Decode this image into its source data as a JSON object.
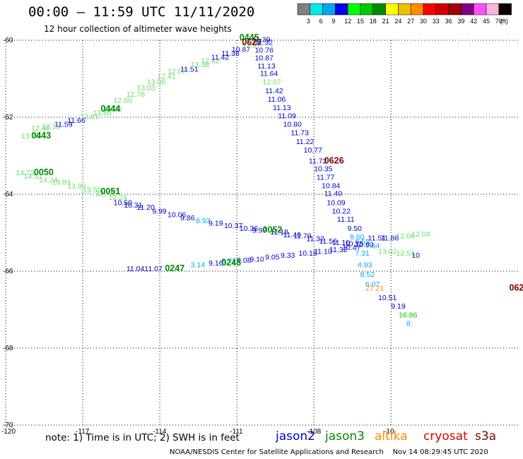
{
  "header": {
    "title": "00:00 – 11:59 UTC 11/11/2020",
    "subtitle": "12 hour collection of altimeter wave heights"
  },
  "scale": {
    "labels": [
      "3",
      "6",
      "9",
      "12",
      "15",
      "18",
      "21",
      "24",
      "27",
      "30",
      "33",
      "36",
      "39",
      "42",
      "45",
      "70"
    ],
    "unit": "(ft)",
    "colors": [
      "#808080",
      "#00e8e8",
      "#00a8f0",
      "#0000f0",
      "#00ff00",
      "#00c800",
      "#008a00",
      "#ffff00",
      "#e8c000",
      "#ff8c00",
      "#ff0000",
      "#d00000",
      "#a00000",
      "#800080",
      "#ff50ff",
      "#ffb4e0",
      "#000000"
    ]
  },
  "footer": {
    "note": "note: 1) Time is in UTC; 2) SWH is in feet",
    "missions": [
      {
        "name": "jason2",
        "color": "#0000cc"
      },
      {
        "name": "jason3",
        "color": "#008a00"
      },
      {
        "name": "altika",
        "color": "#ff8c00"
      },
      {
        "name": "cryosat",
        "color": "#e00000"
      },
      {
        "name": "s3a",
        "color": "#800000"
      }
    ],
    "credit": "NOAA/NESDIS Center for Satellite Applications and Research    Nov 14 08:29:45 UTC 2020"
  },
  "chart_data": {
    "type": "scatter",
    "title": "00:00 – 11:59 UTC 11/11/2020",
    "xlim": [
      -120,
      -100
    ],
    "ylim": [
      -70,
      -60
    ],
    "x_ticks": [
      "-120",
      "-117",
      "-114",
      "-111",
      "-108",
      "-10"
    ],
    "y_ticks": [
      "-60",
      "-62",
      "-64",
      "-66",
      "-68",
      "-70"
    ],
    "grid": true,
    "pass_labels": [
      {
        "text": "0445",
        "lon": -110.9,
        "lat": -60.0,
        "color": "#008a00"
      },
      {
        "text": "0627",
        "lon": -110.8,
        "lat": -60.13,
        "color": "#800000"
      },
      {
        "text": "0444",
        "lon": -116.3,
        "lat": -61.85,
        "color": "#008a00"
      },
      {
        "text": "0443",
        "lon": -119.0,
        "lat": -62.55,
        "color": "#008a00"
      },
      {
        "text": "0626",
        "lon": -107.6,
        "lat": -63.2,
        "color": "#800000"
      },
      {
        "text": "0050",
        "lon": -118.9,
        "lat": -63.5,
        "color": "#008a00"
      },
      {
        "text": "0051",
        "lon": -116.3,
        "lat": -64.0,
        "color": "#008a00"
      },
      {
        "text": "0052",
        "lon": -110.0,
        "lat": -65.0,
        "color": "#008a00"
      },
      {
        "text": "0248",
        "lon": -111.6,
        "lat": -65.85,
        "color": "#008a00"
      },
      {
        "text": "0247",
        "lon": -113.8,
        "lat": -66.0,
        "color": "#008a00"
      },
      {
        "text": "062",
        "lon": -100.4,
        "lat": -66.5,
        "color": "#800000"
      }
    ],
    "points": [
      {
        "lon": -119.4,
        "lat": -62.55,
        "value": "13.05",
        "color": "#66dd66"
      },
      {
        "lon": -119.0,
        "lat": -62.35,
        "value": "12.40",
        "color": "#66dd66"
      },
      {
        "lon": -118.6,
        "lat": -62.3,
        "value": "12.13",
        "color": "#66dd66"
      },
      {
        "lon": -118.1,
        "lat": -62.25,
        "value": "11.59",
        "color": "#0000cc"
      },
      {
        "lon": -117.6,
        "lat": -62.15,
        "value": "11.66",
        "color": "#0000cc"
      },
      {
        "lon": -117.1,
        "lat": -62.05,
        "value": "12.81",
        "color": "#66dd66"
      },
      {
        "lon": -116.6,
        "lat": -61.95,
        "value": "13.66",
        "color": "#66dd66"
      },
      {
        "lon": -116.2,
        "lat": -61.85,
        "value": "13.02",
        "color": "#66dd66"
      },
      {
        "lon": -115.8,
        "lat": -61.62,
        "value": "12.60",
        "color": "#66dd66"
      },
      {
        "lon": -115.3,
        "lat": -61.47,
        "value": "12.78",
        "color": "#66dd66"
      },
      {
        "lon": -114.9,
        "lat": -61.3,
        "value": "13.03",
        "color": "#66dd66"
      },
      {
        "lon": -114.5,
        "lat": -61.15,
        "value": "13.06",
        "color": "#66dd66"
      },
      {
        "lon": -114.1,
        "lat": -61.0,
        "value": "12.41",
        "color": "#66dd66"
      },
      {
        "lon": -113.7,
        "lat": -60.87,
        "value": "12.07",
        "color": "#66dd66"
      },
      {
        "lon": -113.2,
        "lat": -60.82,
        "value": "11.51",
        "color": "#0000cc"
      },
      {
        "lon": -112.8,
        "lat": -60.7,
        "value": "13.38",
        "color": "#66dd66"
      },
      {
        "lon": -112.4,
        "lat": -60.6,
        "value": "12.42",
        "color": "#66dd66"
      },
      {
        "lon": -112.0,
        "lat": -60.5,
        "value": "11.42",
        "color": "#0000cc"
      },
      {
        "lon": -111.6,
        "lat": -60.4,
        "value": "11.38",
        "color": "#0000cc"
      },
      {
        "lon": -111.2,
        "lat": -60.3,
        "value": "10.87",
        "color": "#0000cc"
      },
      {
        "lon": -110.8,
        "lat": -60.2,
        "value": "12.47",
        "color": "#66dd66"
      },
      {
        "lon": -110.4,
        "lat": -60.05,
        "value": "11.39",
        "color": "#0000cc"
      },
      {
        "lon": -110.3,
        "lat": -60.12,
        "value": "11.32",
        "color": "#0000cc"
      },
      {
        "lon": -110.3,
        "lat": -60.32,
        "value": "10.76",
        "color": "#0000cc"
      },
      {
        "lon": -110.3,
        "lat": -60.52,
        "value": "10.87",
        "color": "#0000cc"
      },
      {
        "lon": -110.2,
        "lat": -60.73,
        "value": "11.13",
        "color": "#0000cc"
      },
      {
        "lon": -110.1,
        "lat": -60.93,
        "value": "11.64",
        "color": "#0000cc"
      },
      {
        "lon": -110.0,
        "lat": -61.15,
        "value": "12.07",
        "color": "#66dd66"
      },
      {
        "lon": -109.9,
        "lat": -61.38,
        "value": "11.42",
        "color": "#0000cc"
      },
      {
        "lon": -109.8,
        "lat": -61.6,
        "value": "11.06",
        "color": "#0000cc"
      },
      {
        "lon": -109.6,
        "lat": -61.82,
        "value": "11.13",
        "color": "#0000cc"
      },
      {
        "lon": -109.4,
        "lat": -62.03,
        "value": "11.09",
        "color": "#0000cc"
      },
      {
        "lon": -109.2,
        "lat": -62.25,
        "value": "10.80",
        "color": "#0000cc"
      },
      {
        "lon": -108.9,
        "lat": -62.47,
        "value": "11.73",
        "color": "#0000cc"
      },
      {
        "lon": -108.7,
        "lat": -62.7,
        "value": "11.22",
        "color": "#0000cc"
      },
      {
        "lon": -108.4,
        "lat": -62.92,
        "value": "10.77",
        "color": "#0000cc"
      },
      {
        "lon": -108.2,
        "lat": -63.2,
        "value": "11.72",
        "color": "#0000cc"
      },
      {
        "lon": -108.0,
        "lat": -63.4,
        "value": "10.35",
        "color": "#0000cc"
      },
      {
        "lon": -107.9,
        "lat": -63.62,
        "value": "11.77",
        "color": "#0000cc"
      },
      {
        "lon": -107.7,
        "lat": -63.84,
        "value": "10.84",
        "color": "#0000cc"
      },
      {
        "lon": -107.6,
        "lat": -64.05,
        "value": "11.40",
        "color": "#0000cc"
      },
      {
        "lon": -107.5,
        "lat": -64.28,
        "value": "10.09",
        "color": "#0000cc"
      },
      {
        "lon": -107.3,
        "lat": -64.5,
        "value": "10.22",
        "color": "#0000cc"
      },
      {
        "lon": -107.1,
        "lat": -64.72,
        "value": "11.11",
        "color": "#0000cc"
      },
      {
        "lon": -106.7,
        "lat": -64.95,
        "value": "9.50",
        "color": "#0000cc"
      },
      {
        "lon": -106.6,
        "lat": -65.17,
        "value": "8.60",
        "color": "#00a8f0"
      },
      {
        "lon": -106.4,
        "lat": -65.3,
        "value": "6.55",
        "color": "#00a8f0"
      },
      {
        "lon": -106.0,
        "lat": -65.4,
        "value": "7.64",
        "color": "#00a8f0"
      },
      {
        "lon": -106.4,
        "lat": -65.6,
        "value": "7.31",
        "color": "#00a8f0"
      },
      {
        "lon": -106.3,
        "lat": -65.9,
        "value": "4.93",
        "color": "#00a8f0"
      },
      {
        "lon": -106.2,
        "lat": -66.15,
        "value": "8.52",
        "color": "#00a8f0"
      },
      {
        "lon": -106.0,
        "lat": -66.4,
        "value": "6.07",
        "color": "#00a8f0"
      },
      {
        "lon": -106.0,
        "lat": -66.5,
        "value": "27.21",
        "color": "#ff8c00"
      },
      {
        "lon": -105.5,
        "lat": -66.75,
        "value": "10.51",
        "color": "#0000cc"
      },
      {
        "lon": -105.0,
        "lat": -66.97,
        "value": "9.19",
        "color": "#0000cc"
      },
      {
        "lon": -104.7,
        "lat": -67.2,
        "value": "16.86",
        "color": "#00c800"
      },
      {
        "lon": -104.4,
        "lat": -67.42,
        "value": "8.",
        "color": "#00a8f0"
      },
      {
        "lon": -105.9,
        "lat": -65.2,
        "value": "11.51",
        "color": "#0000cc"
      },
      {
        "lon": -105.4,
        "lat": -65.2,
        "value": "11.86",
        "color": "#0000cc"
      },
      {
        "lon": -104.8,
        "lat": -65.15,
        "value": "12.06",
        "color": "#66dd66"
      },
      {
        "lon": -104.2,
        "lat": -65.1,
        "value": "12.04",
        "color": "#66dd66"
      },
      {
        "lon": -105.5,
        "lat": -65.55,
        "value": "13.02",
        "color": "#66dd66"
      },
      {
        "lon": -104.8,
        "lat": -65.6,
        "value": "12.51",
        "color": "#66dd66"
      },
      {
        "lon": -104.2,
        "lat": -65.65,
        "value": "10",
        "color": "#0000cc"
      },
      {
        "lon": -119.6,
        "lat": -63.5,
        "value": "14.73",
        "color": "#66dd66"
      },
      {
        "lon": -119.3,
        "lat": -63.6,
        "value": "14.51",
        "color": "#66dd66"
      },
      {
        "lon": -118.7,
        "lat": -63.7,
        "value": "14.24",
        "color": "#66dd66"
      },
      {
        "lon": -118.2,
        "lat": -63.75,
        "value": "13.89",
        "color": "#66dd66"
      },
      {
        "lon": -117.6,
        "lat": -63.85,
        "value": "13.96",
        "color": "#66dd66"
      },
      {
        "lon": -117.0,
        "lat": -63.95,
        "value": "13.50",
        "color": "#66dd66"
      },
      {
        "lon": -116.5,
        "lat": -64.05,
        "value": "12.73",
        "color": "#66dd66"
      },
      {
        "lon": -116.0,
        "lat": -64.15,
        "value": "12.24",
        "color": "#66dd66"
      },
      {
        "lon": -115.8,
        "lat": -64.28,
        "value": "10.50",
        "color": "#0000cc"
      },
      {
        "lon": -115.4,
        "lat": -64.35,
        "value": "10.31",
        "color": "#0000cc"
      },
      {
        "lon": -114.9,
        "lat": -64.4,
        "value": "11.20",
        "color": "#0000cc"
      },
      {
        "lon": -114.3,
        "lat": -64.5,
        "value": "9.99",
        "color": "#0000cc"
      },
      {
        "lon": -113.7,
        "lat": -64.6,
        "value": "10.06",
        "color": "#0000cc"
      },
      {
        "lon": -113.2,
        "lat": -64.68,
        "value": "9.86",
        "color": "#0000cc"
      },
      {
        "lon": -112.6,
        "lat": -64.75,
        "value": "8.93",
        "color": "#00a8f0"
      },
      {
        "lon": -112.1,
        "lat": -64.82,
        "value": "9.19",
        "color": "#0000cc"
      },
      {
        "lon": -111.5,
        "lat": -64.88,
        "value": "10.37",
        "color": "#0000cc"
      },
      {
        "lon": -110.9,
        "lat": -64.95,
        "value": "10.36",
        "color": "#0000cc"
      },
      {
        "lon": -110.4,
        "lat": -65.0,
        "value": "9.99",
        "color": "#0000cc"
      },
      {
        "lon": -109.7,
        "lat": -65.05,
        "value": "11.18",
        "color": "#0000cc"
      },
      {
        "lon": -109.2,
        "lat": -65.12,
        "value": "11.40",
        "color": "#0000cc"
      },
      {
        "lon": -108.8,
        "lat": -65.15,
        "value": "11.79",
        "color": "#0000cc"
      },
      {
        "lon": -108.3,
        "lat": -65.22,
        "value": "11.32",
        "color": "#0000cc"
      },
      {
        "lon": -107.8,
        "lat": -65.28,
        "value": "11.56",
        "color": "#0000cc"
      },
      {
        "lon": -107.3,
        "lat": -65.32,
        "value": "11.10",
        "color": "#0000cc"
      },
      {
        "lon": -106.8,
        "lat": -65.35,
        "value": "10.75",
        "color": "#0000cc"
      },
      {
        "lon": -106.4,
        "lat": -65.38,
        "value": "10.60",
        "color": "#0000cc"
      },
      {
        "lon": -115.3,
        "lat": -66.0,
        "value": "11.04",
        "color": "#0000cc"
      },
      {
        "lon": -114.6,
        "lat": -66.0,
        "value": "11.07",
        "color": "#0000cc"
      },
      {
        "lon": -112.8,
        "lat": -65.9,
        "value": "3.14",
        "color": "#00a8f0"
      },
      {
        "lon": -112.1,
        "lat": -65.85,
        "value": "9.16",
        "color": "#0000cc"
      },
      {
        "lon": -111.6,
        "lat": -65.8,
        "value": "6.77",
        "color": "#00a8f0"
      },
      {
        "lon": -111.0,
        "lat": -65.78,
        "value": "9.08",
        "color": "#0000cc"
      },
      {
        "lon": -110.5,
        "lat": -65.75,
        "value": "9.10",
        "color": "#0000cc"
      },
      {
        "lon": -109.9,
        "lat": -65.7,
        "value": "9.05",
        "color": "#0000cc"
      },
      {
        "lon": -109.3,
        "lat": -65.65,
        "value": "9.33",
        "color": "#0000cc"
      },
      {
        "lon": -108.6,
        "lat": -65.6,
        "value": "10.18",
        "color": "#0000cc"
      },
      {
        "lon": -108.0,
        "lat": -65.55,
        "value": "11.10",
        "color": "#0000cc"
      },
      {
        "lon": -107.4,
        "lat": -65.5,
        "value": "11.32",
        "color": "#0000cc"
      },
      {
        "lon": -106.9,
        "lat": -65.45,
        "value": "10.47",
        "color": "#0000cc"
      }
    ]
  }
}
